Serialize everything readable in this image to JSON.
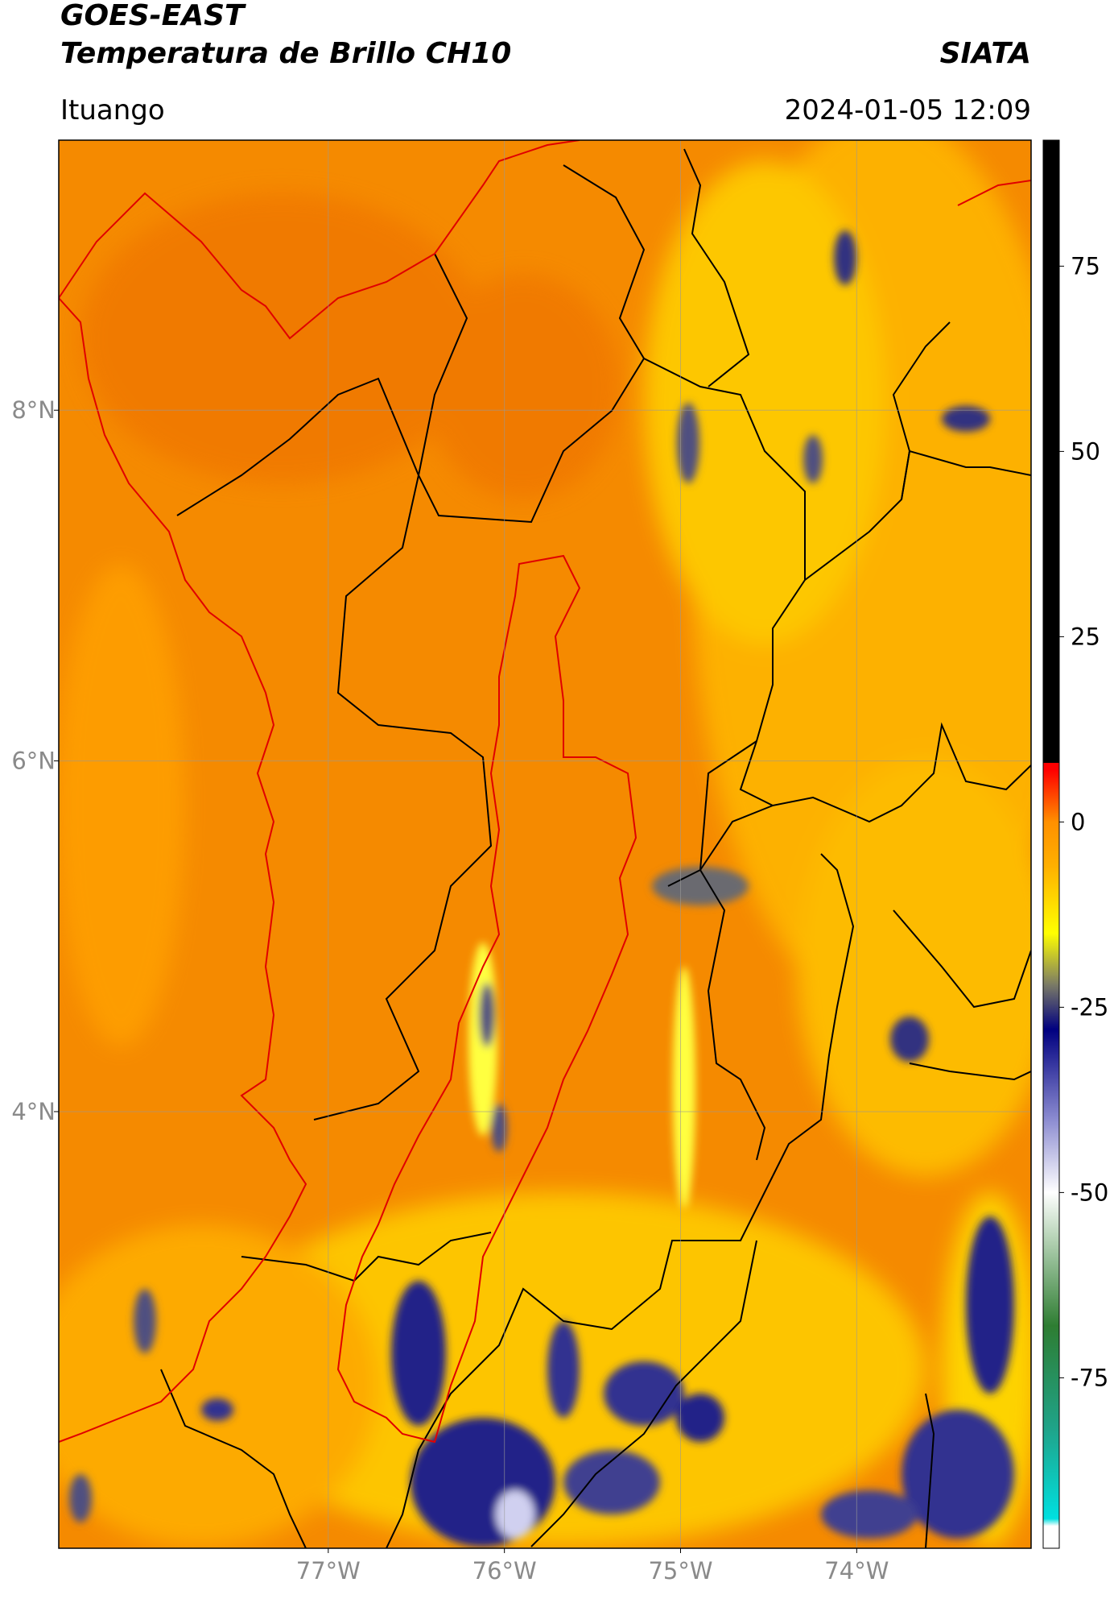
{
  "header": {
    "title": "GOES-EAST",
    "subtitle": "Temperatura de Brillo CH10",
    "brand": "SIATA",
    "location": "Ituango",
    "datetime": "2024-01-05 12:09"
  },
  "map": {
    "xlim": [
      -78.53,
      -73.01
    ],
    "ylim": [
      1.51,
      9.54
    ],
    "xticks": [
      {
        "value": -77,
        "label": "77°W"
      },
      {
        "value": -76,
        "label": "76°W"
      },
      {
        "value": -75,
        "label": "75°W"
      },
      {
        "value": -74,
        "label": "74°W"
      }
    ],
    "yticks": [
      {
        "value": 8,
        "label": "8°N"
      },
      {
        "value": 6,
        "label": "6°N"
      },
      {
        "value": 4,
        "label": "4°N"
      }
    ],
    "grid": true,
    "colorbar": {
      "lim": [
        -98,
        92
      ],
      "ticks": [
        75,
        50,
        25,
        0,
        -25,
        -50,
        -75
      ],
      "colormap": [
        {
          "value": -98,
          "color": "#ffffff"
        },
        {
          "value": -95,
          "color": "#ffffff"
        },
        {
          "value": -94,
          "color": "#00e0e0"
        },
        {
          "value": -82,
          "color": "#1fa48a"
        },
        {
          "value": -68,
          "color": "#2e7d32"
        },
        {
          "value": -56,
          "color": "#b8d4b8"
        },
        {
          "value": -50,
          "color": "#ffffff"
        },
        {
          "value": -40,
          "color": "#8a8ad0"
        },
        {
          "value": -28,
          "color": "#000080"
        },
        {
          "value": -22,
          "color": "#7a7a66"
        },
        {
          "value": -15,
          "color": "#ffff00"
        },
        {
          "value": -6,
          "color": "#ffb000"
        },
        {
          "value": 0,
          "color": "#ff9000"
        },
        {
          "value": 7,
          "color": "#ff0000"
        },
        {
          "value": 8,
          "color": "#ff0000"
        },
        {
          "value": 8,
          "color": "#000000"
        },
        {
          "value": 92,
          "color": "#000000"
        }
      ]
    }
  }
}
